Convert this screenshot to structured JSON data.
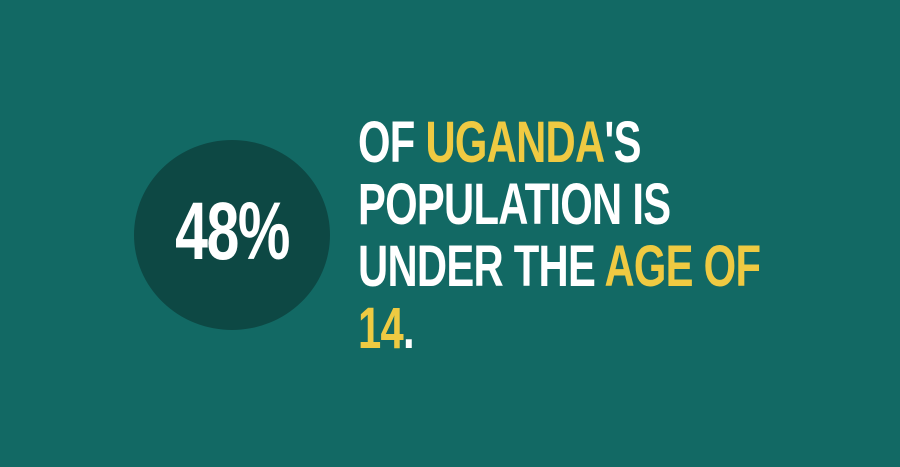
{
  "colors": {
    "background": "#126964",
    "circle": "#0d4844",
    "text": "#ffffff",
    "highlight": "#efca42"
  },
  "stat": {
    "value": "48%"
  },
  "headline": {
    "lines": [
      [
        {
          "text": "OF ",
          "highlight": false
        },
        {
          "text": "UGANDA",
          "highlight": true
        },
        {
          "text": "'S",
          "highlight": false
        }
      ],
      [
        {
          "text": "POPULATION IS",
          "highlight": false
        }
      ],
      [
        {
          "text": "UNDER THE ",
          "highlight": false
        },
        {
          "text": "AGE OF",
          "highlight": true
        }
      ],
      [
        {
          "text": "14",
          "highlight": true
        },
        {
          "text": ".",
          "highlight": false
        }
      ]
    ]
  }
}
